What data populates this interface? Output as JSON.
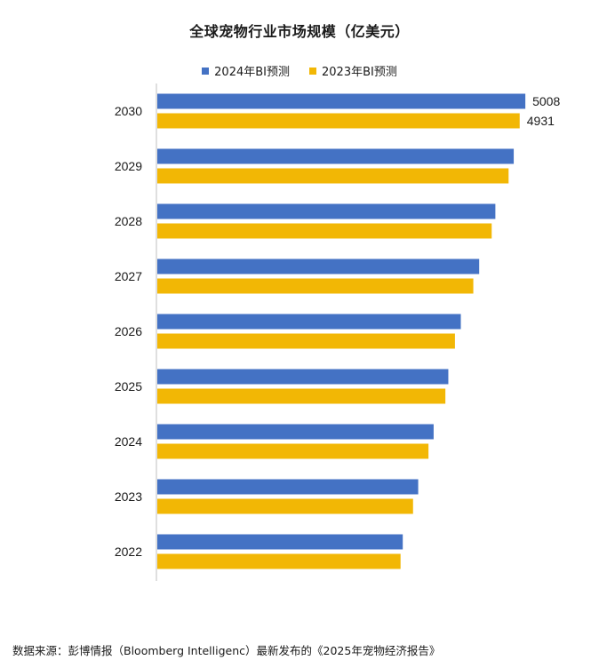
{
  "chart_data": {
    "type": "bar",
    "orientation": "horizontal",
    "title": "全球宠物行业市场规模（亿美元）",
    "categories": [
      "2030",
      "2029",
      "2028",
      "2027",
      "2026",
      "2025",
      "2024",
      "2023",
      "2022"
    ],
    "series": [
      {
        "name": "2024年BI预测",
        "color": "#4472C4",
        "values": [
          5008,
          4850,
          4600,
          4380,
          4130,
          3960,
          3760,
          3550,
          3340
        ]
      },
      {
        "name": "2023年BI预测",
        "color": "#F2B705",
        "values": [
          4931,
          4780,
          4550,
          4300,
          4050,
          3920,
          3690,
          3480,
          3310
        ]
      }
    ],
    "data_labels": [
      {
        "category": "2030",
        "series": 0,
        "text": "5008"
      },
      {
        "category": "2030",
        "series": 1,
        "text": "4931"
      }
    ],
    "xlim": [
      0,
      5200
    ],
    "grid": false,
    "legend_position": "top"
  },
  "footer": {
    "source": "数据来源：彭博情报（Bloomberg Intelligenc）最新发布的《2025年宠物经济报告》"
  }
}
